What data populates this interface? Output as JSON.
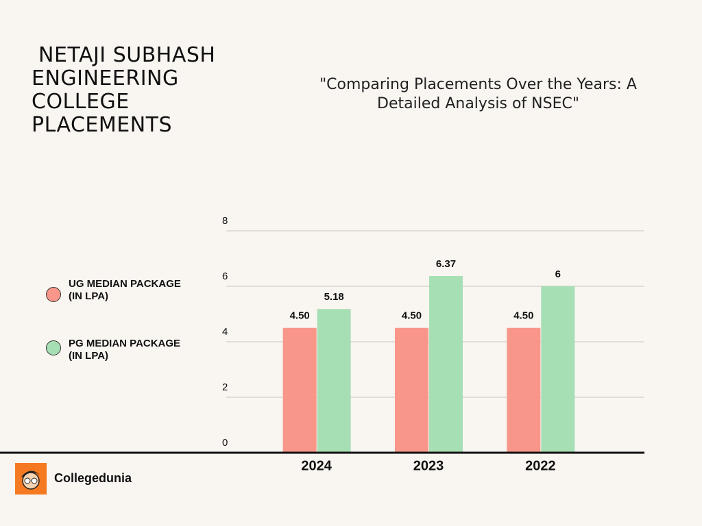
{
  "chart_data": {
    "type": "bar",
    "title": " NETAJI SUBHASH ENGINEERING COLLEGE PLACEMENTS",
    "subtitle": "\"Comparing Placements Over the Years: A Detailed Analysis of NSEC\"",
    "categories": [
      "2024",
      "2023",
      "2022"
    ],
    "series": [
      {
        "name": "UG MEDIAN PACKAGE (IN LPA)",
        "color": "#f8968a",
        "values": [
          4.5,
          4.5,
          4.5
        ],
        "value_labels": [
          "4.50",
          "4.50",
          "4.50"
        ]
      },
      {
        "name": "PG MEDIAN PACKAGE (IN LPA)",
        "color": "#a7dfb4",
        "values": [
          5.18,
          6.37,
          6
        ]
      }
    ],
    "ylim": [
      0,
      8
    ],
    "yticks": [
      0,
      2,
      4,
      6,
      8
    ],
    "grid": true,
    "legend": "left"
  },
  "footer": {
    "brand": "Collegedunia"
  }
}
